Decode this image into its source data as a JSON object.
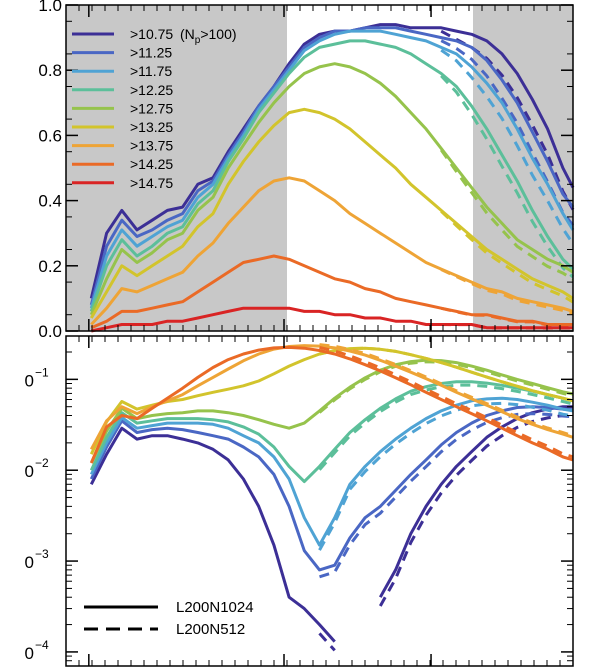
{
  "chart_data": [
    {
      "type": "line",
      "panel": "top",
      "yscale": "linear",
      "ylim": [
        0,
        1.0
      ],
      "yticks": [
        "0.0",
        "0.2",
        "0.4",
        "0.6",
        "0.8",
        "1.0"
      ],
      "shaded_regions": [
        "left",
        "right"
      ],
      "legend_placement": "top-left",
      "series_colors": [
        "#3c2f96",
        "#4a67c4",
        "#4fa3d4",
        "#5cbf9a",
        "#96c34c",
        "#d2c42c",
        "#eea436",
        "#ea6a26",
        "#d92424"
      ],
      "legend": [
        {
          "label": ">10.75",
          "note_pre": "(N",
          "note_sub": "p",
          "note_post": ">100)"
        },
        {
          "label": ">11.25"
        },
        {
          "label": ">11.75"
        },
        {
          "label": ">12.25"
        },
        {
          "label": ">12.75"
        },
        {
          "label": ">13.25"
        },
        {
          "label": ">13.75"
        },
        {
          "label": ">14.25"
        },
        {
          "label": ">14.75"
        }
      ],
      "x": [
        0.05,
        0.08,
        0.11,
        0.14,
        0.17,
        0.2,
        0.23,
        0.26,
        0.29,
        0.32,
        0.35,
        0.38,
        0.41,
        0.44,
        0.47,
        0.5,
        0.53,
        0.56,
        0.59,
        0.62,
        0.65,
        0.68,
        0.71,
        0.74,
        0.77,
        0.8,
        0.83,
        0.86,
        0.89,
        0.92,
        0.95,
        0.98,
        1.0
      ],
      "series_solid": [
        [
          0.1,
          0.3,
          0.37,
          0.31,
          0.34,
          0.37,
          0.38,
          0.45,
          0.47,
          0.55,
          0.62,
          0.69,
          0.75,
          0.82,
          0.88,
          0.91,
          0.92,
          0.92,
          0.93,
          0.94,
          0.94,
          0.93,
          0.93,
          0.93,
          0.92,
          0.91,
          0.89,
          0.85,
          0.79,
          0.71,
          0.62,
          0.5,
          0.44
        ],
        [
          0.08,
          0.26,
          0.34,
          0.29,
          0.31,
          0.34,
          0.36,
          0.43,
          0.46,
          0.54,
          0.61,
          0.69,
          0.75,
          0.81,
          0.87,
          0.9,
          0.92,
          0.92,
          0.93,
          0.93,
          0.93,
          0.92,
          0.91,
          0.9,
          0.89,
          0.87,
          0.83,
          0.77,
          0.7,
          0.61,
          0.52,
          0.42,
          0.38
        ],
        [
          0.07,
          0.23,
          0.31,
          0.26,
          0.29,
          0.32,
          0.34,
          0.41,
          0.45,
          0.53,
          0.6,
          0.68,
          0.74,
          0.8,
          0.86,
          0.89,
          0.91,
          0.92,
          0.92,
          0.92,
          0.91,
          0.9,
          0.89,
          0.87,
          0.85,
          0.81,
          0.76,
          0.7,
          0.62,
          0.53,
          0.45,
          0.36,
          0.31
        ],
        [
          0.06,
          0.2,
          0.28,
          0.23,
          0.26,
          0.3,
          0.32,
          0.39,
          0.43,
          0.52,
          0.59,
          0.67,
          0.73,
          0.79,
          0.84,
          0.87,
          0.88,
          0.89,
          0.89,
          0.88,
          0.87,
          0.85,
          0.82,
          0.79,
          0.75,
          0.69,
          0.62,
          0.54,
          0.46,
          0.37,
          0.29,
          0.22,
          0.19
        ],
        [
          0.05,
          0.16,
          0.25,
          0.21,
          0.24,
          0.28,
          0.3,
          0.37,
          0.41,
          0.5,
          0.57,
          0.64,
          0.7,
          0.75,
          0.79,
          0.81,
          0.82,
          0.81,
          0.79,
          0.76,
          0.72,
          0.67,
          0.62,
          0.56,
          0.5,
          0.44,
          0.38,
          0.33,
          0.28,
          0.25,
          0.22,
          0.2,
          0.18
        ],
        [
          0.04,
          0.12,
          0.2,
          0.17,
          0.2,
          0.23,
          0.26,
          0.32,
          0.36,
          0.45,
          0.52,
          0.58,
          0.63,
          0.67,
          0.68,
          0.67,
          0.65,
          0.62,
          0.58,
          0.54,
          0.5,
          0.45,
          0.41,
          0.37,
          0.33,
          0.29,
          0.25,
          0.22,
          0.19,
          0.16,
          0.14,
          0.12,
          0.1
        ],
        [
          0.02,
          0.07,
          0.13,
          0.12,
          0.14,
          0.16,
          0.18,
          0.23,
          0.27,
          0.33,
          0.38,
          0.43,
          0.46,
          0.47,
          0.46,
          0.43,
          0.4,
          0.36,
          0.33,
          0.3,
          0.27,
          0.24,
          0.21,
          0.19,
          0.17,
          0.15,
          0.13,
          0.12,
          0.1,
          0.09,
          0.08,
          0.07,
          0.06
        ],
        [
          0.01,
          0.03,
          0.06,
          0.06,
          0.07,
          0.08,
          0.09,
          0.12,
          0.15,
          0.18,
          0.21,
          0.22,
          0.23,
          0.22,
          0.2,
          0.18,
          0.16,
          0.15,
          0.13,
          0.12,
          0.1,
          0.09,
          0.08,
          0.07,
          0.06,
          0.05,
          0.05,
          0.04,
          0.03,
          0.03,
          0.02,
          0.02,
          0.02
        ],
        [
          0.0,
          0.01,
          0.02,
          0.02,
          0.02,
          0.03,
          0.03,
          0.04,
          0.05,
          0.06,
          0.07,
          0.07,
          0.07,
          0.07,
          0.06,
          0.06,
          0.05,
          0.05,
          0.04,
          0.04,
          0.03,
          0.03,
          0.02,
          0.02,
          0.02,
          0.02,
          0.01,
          0.01,
          0.01,
          0.01,
          0.01,
          0.01,
          0.01
        ]
      ]
    },
    {
      "type": "line",
      "panel": "bottom",
      "yscale": "log",
      "ylim": [
        7e-05,
        0.3
      ],
      "ytick_bases": [
        "0",
        "0",
        "0",
        "0"
      ],
      "ytick_exps": [
        "−1",
        "−2",
        "−3",
        "−4"
      ],
      "ytick_values": [
        0.1,
        0.01,
        0.001,
        0.0001
      ],
      "legend_placement": "bottom-left",
      "line_legend": [
        {
          "style": "solid",
          "label": "L200N1024"
        },
        {
          "style": "dashed",
          "label": "L200N512"
        }
      ],
      "x": [
        0.05,
        0.08,
        0.11,
        0.14,
        0.17,
        0.2,
        0.23,
        0.26,
        0.29,
        0.32,
        0.35,
        0.38,
        0.41,
        0.44,
        0.47,
        0.5,
        0.53,
        0.56,
        0.59,
        0.62,
        0.65,
        0.68,
        0.71,
        0.74,
        0.77,
        0.8,
        0.83,
        0.86,
        0.89,
        0.92,
        0.95,
        0.98,
        1.0
      ],
      "series_solid": [
        [
          0.007,
          0.015,
          0.029,
          0.022,
          0.024,
          0.024,
          0.022,
          0.02,
          0.017,
          0.013,
          0.008,
          0.004,
          0.0015,
          0.0004,
          0.0003,
          0.0002,
          0.00013,
          null,
          null,
          0.0004,
          0.0008,
          0.002,
          0.004,
          0.007,
          0.011,
          0.016,
          0.023,
          0.03,
          0.037,
          0.043,
          0.047,
          0.05,
          0.05
        ],
        [
          0.008,
          0.018,
          0.035,
          0.026,
          0.028,
          0.029,
          0.028,
          0.026,
          0.024,
          0.022,
          0.018,
          0.014,
          0.009,
          0.004,
          0.0013,
          0.0008,
          0.0009,
          0.0018,
          0.003,
          0.004,
          0.006,
          0.009,
          0.013,
          0.019,
          0.026,
          0.033,
          0.04,
          0.045,
          0.049,
          0.05,
          0.049,
          0.047,
          0.046
        ],
        [
          0.009,
          0.02,
          0.038,
          0.029,
          0.031,
          0.033,
          0.033,
          0.033,
          0.032,
          0.029,
          0.024,
          0.02,
          0.014,
          0.008,
          0.003,
          0.0015,
          0.003,
          0.007,
          0.011,
          0.016,
          0.022,
          0.029,
          0.037,
          0.045,
          0.052,
          0.058,
          0.061,
          0.062,
          0.06,
          0.056,
          0.052,
          0.047,
          0.045
        ],
        [
          0.01,
          0.023,
          0.043,
          0.033,
          0.035,
          0.037,
          0.037,
          0.037,
          0.036,
          0.034,
          0.03,
          0.025,
          0.018,
          0.011,
          0.0075,
          0.011,
          0.017,
          0.026,
          0.036,
          0.048,
          0.061,
          0.074,
          0.083,
          0.09,
          0.094,
          0.094,
          0.091,
          0.086,
          0.08,
          0.074,
          0.068,
          0.062,
          0.058
        ],
        [
          0.012,
          0.027,
          0.048,
          0.037,
          0.04,
          0.042,
          0.043,
          0.045,
          0.045,
          0.043,
          0.04,
          0.036,
          0.032,
          0.029,
          0.033,
          0.045,
          0.062,
          0.082,
          0.104,
          0.126,
          0.145,
          0.157,
          0.163,
          0.161,
          0.153,
          0.14,
          0.126,
          0.112,
          0.1,
          0.09,
          0.081,
          0.073,
          0.069
        ],
        [
          0.015,
          0.034,
          0.057,
          0.047,
          0.052,
          0.057,
          0.06,
          0.066,
          0.072,
          0.078,
          0.085,
          0.096,
          0.115,
          0.14,
          0.165,
          0.19,
          0.208,
          0.218,
          0.22,
          0.214,
          0.203,
          0.187,
          0.17,
          0.153,
          0.136,
          0.12,
          0.106,
          0.094,
          0.084,
          0.075,
          0.068,
          0.062,
          0.058
        ],
        [
          0.017,
          0.035,
          0.05,
          0.042,
          0.05,
          0.058,
          0.068,
          0.085,
          0.105,
          0.13,
          0.16,
          0.19,
          0.215,
          0.23,
          0.235,
          0.232,
          0.222,
          0.205,
          0.185,
          0.162,
          0.14,
          0.12,
          0.102,
          0.086,
          0.072,
          0.061,
          0.052,
          0.044,
          0.037,
          0.032,
          0.028,
          0.025,
          0.023
        ],
        [
          0.012,
          0.03,
          0.04,
          0.037,
          0.048,
          0.062,
          0.08,
          0.105,
          0.135,
          0.165,
          0.19,
          0.21,
          0.222,
          0.225,
          0.22,
          0.208,
          0.19,
          0.168,
          0.145,
          0.124,
          0.104,
          0.087,
          0.072,
          0.06,
          0.05,
          0.042,
          0.035,
          0.029,
          0.024,
          0.02,
          0.017,
          0.014,
          0.013
        ]
      ]
    }
  ]
}
